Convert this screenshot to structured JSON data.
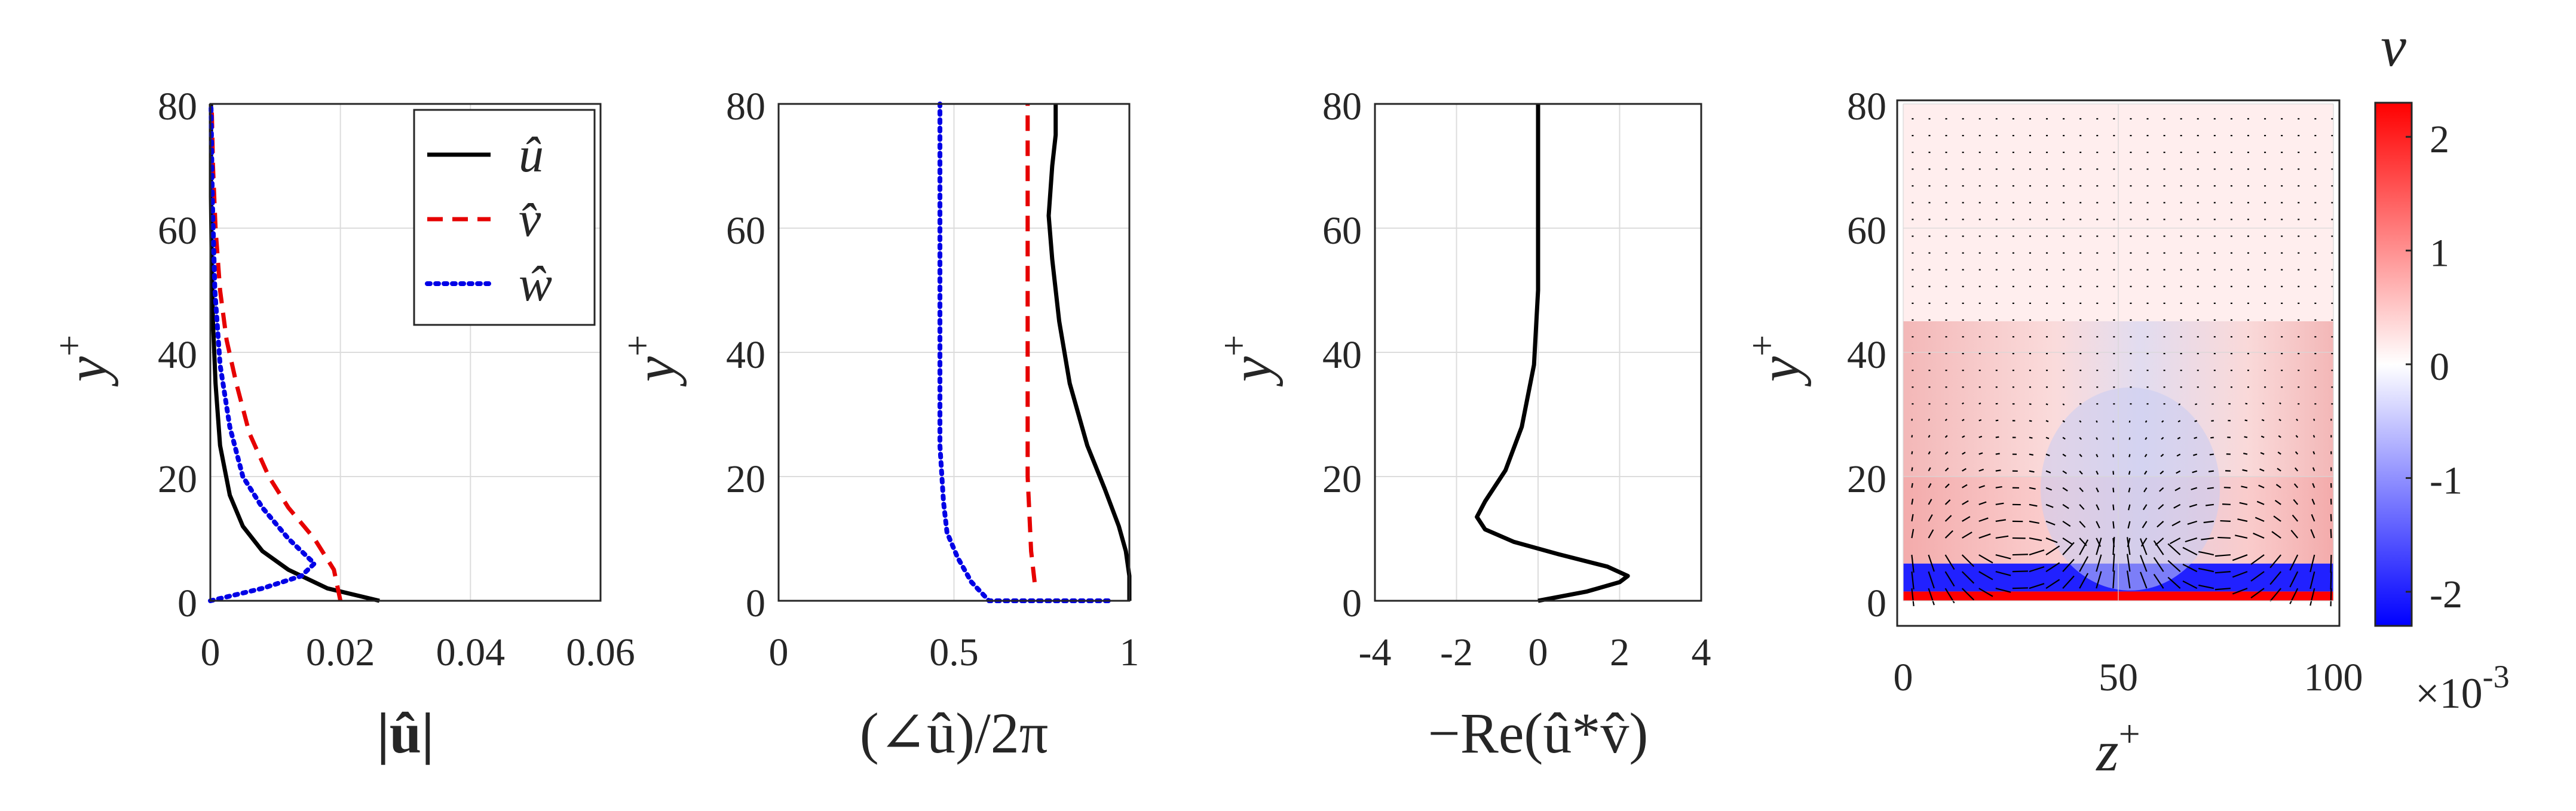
{
  "chart_data": [
    {
      "type": "line",
      "xlabel": "|û|",
      "ylabel": "y+",
      "xlim": [
        0,
        0.06
      ],
      "ylim": [
        0,
        80
      ],
      "xticks": [
        "0",
        "0.02",
        "0.04",
        "0.06"
      ],
      "yticks": [
        "0",
        "20",
        "40",
        "60",
        "80"
      ],
      "grid": true,
      "legend": {
        "position": "top-right"
      },
      "series": [
        {
          "name": "û",
          "color": "#000000",
          "dash": "solid",
          "x": [
            0.026,
            0.018,
            0.012,
            0.008,
            0.005,
            0.003,
            0.0015,
            0.0008,
            0.0004,
            0.0002,
            0.0001,
            0.0001
          ],
          "y": [
            0,
            2,
            5,
            8,
            12,
            17,
            25,
            35,
            45,
            55,
            65,
            80
          ]
        },
        {
          "name": "v̂",
          "color": "#e60000",
          "dash": "dashed",
          "x": [
            0.02,
            0.019,
            0.016,
            0.012,
            0.009,
            0.006,
            0.004,
            0.0025,
            0.0015,
            0.0008,
            0.0004,
            0.0002
          ],
          "y": [
            0,
            5,
            10,
            15,
            20,
            27,
            35,
            42,
            50,
            60,
            70,
            80
          ]
        },
        {
          "name": "ŵ",
          "color": "#0000e6",
          "dash": "dotted",
          "x": [
            0,
            0.008,
            0.014,
            0.016,
            0.012,
            0.008,
            0.005,
            0.003,
            0.0015,
            0.0007,
            0.0003,
            0.0001
          ],
          "y": [
            0,
            2,
            4,
            6,
            10,
            15,
            20,
            28,
            38,
            50,
            65,
            80
          ]
        }
      ]
    },
    {
      "type": "line",
      "xlabel": "(∠û)/2π",
      "ylabel": "y+",
      "xlim": [
        0,
        1
      ],
      "ylim": [
        0,
        80
      ],
      "xticks": [
        "0",
        "0.5",
        "1"
      ],
      "yticks": [
        "0",
        "20",
        "40",
        "60",
        "80"
      ],
      "grid": true,
      "series": [
        {
          "color": "#000000",
          "dash": "solid",
          "x": [
            1.0,
            1.0,
            0.99,
            0.97,
            0.93,
            0.88,
            0.83,
            0.8,
            0.78,
            0.77,
            0.78,
            0.79,
            0.79
          ],
          "y": [
            0,
            4,
            8,
            12,
            18,
            25,
            35,
            45,
            55,
            62,
            70,
            75,
            80
          ]
        },
        {
          "color": "#e60000",
          "dash": "dashed",
          "x": [
            0.73,
            0.72,
            0.71,
            0.71,
            0.71,
            0.71
          ],
          "y": [
            3,
            8,
            20,
            40,
            60,
            80
          ]
        },
        {
          "color": "#0000e6",
          "dash": "dotted",
          "x": [
            0.94,
            0.6,
            0.55,
            0.51,
            0.48,
            0.47,
            0.46,
            0.46,
            0.46
          ],
          "y": [
            0,
            0,
            3,
            7,
            11,
            16,
            25,
            50,
            80
          ]
        }
      ]
    },
    {
      "type": "line",
      "xlabel": "−Re(û*v̂)",
      "ylabel": "y+",
      "xlim": [
        -4,
        4
      ],
      "ylim": [
        0,
        80
      ],
      "xticks": [
        "-4",
        "-2",
        "0",
        "2",
        "4"
      ],
      "yticks": [
        "0",
        "20",
        "40",
        "60",
        "80"
      ],
      "grid": true,
      "series": [
        {
          "color": "#000000",
          "dash": "solid",
          "x": [
            0,
            1.2,
            2.0,
            2.2,
            1.7,
            0.5,
            -0.6,
            -1.3,
            -1.5,
            -1.3,
            -0.8,
            -0.4,
            -0.1,
            0,
            0
          ],
          "y": [
            0,
            1.5,
            3,
            4,
            5.5,
            7.5,
            9.5,
            11.5,
            13.5,
            16,
            21,
            28,
            38,
            50,
            80
          ]
        }
      ]
    },
    {
      "type": "heatmap",
      "xlabel": "z+",
      "ylabel": "y+",
      "xlim": [
        0,
        100
      ],
      "ylim": [
        0,
        80
      ],
      "xticks": [
        "0",
        "50",
        "100"
      ],
      "yticks": [
        "0",
        "20",
        "40",
        "60",
        "80"
      ],
      "colorbar": {
        "title": "v",
        "min": -2.3,
        "max": 2.3,
        "ticks": [
          "-2",
          "-1",
          "0",
          "1",
          "2"
        ],
        "exponent_label": "×10-3",
        "colors": [
          "#0000ff",
          "#ffffff",
          "#ff0000"
        ]
      },
      "quiver": true,
      "bands": [
        {
          "y": [
            0,
            1.5
          ],
          "value": 2.3
        },
        {
          "y": [
            1.5,
            6
          ],
          "value": -2.0
        },
        {
          "y": [
            6,
            20
          ],
          "value": 0.4
        },
        {
          "y": [
            20,
            80
          ],
          "value": 0.15
        }
      ]
    }
  ]
}
